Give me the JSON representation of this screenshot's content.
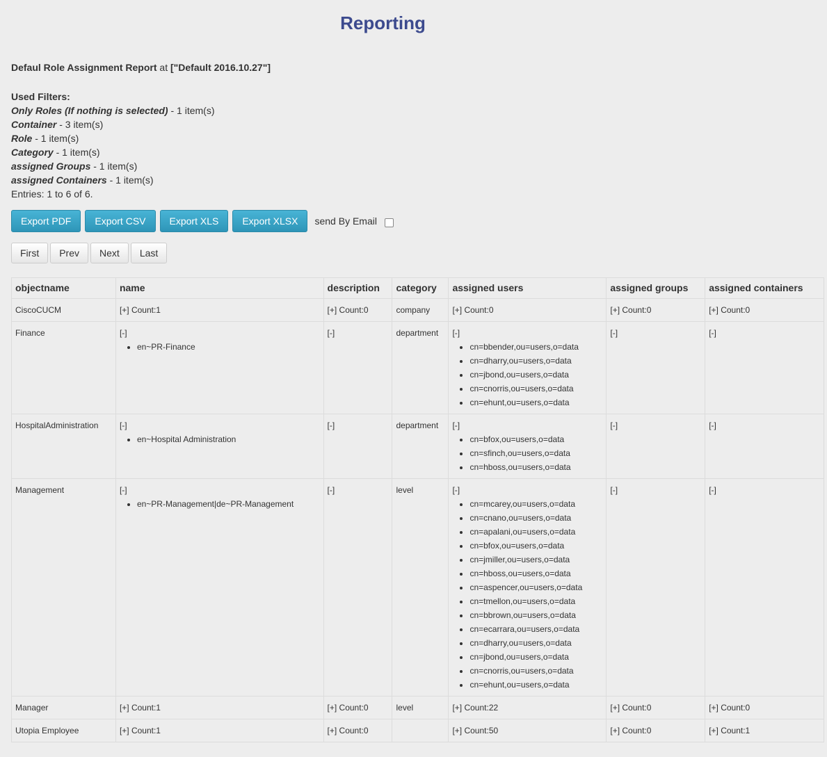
{
  "header": {
    "title": "Reporting"
  },
  "report": {
    "name": "Defaul Role Assignment Report",
    "at_word": "at",
    "context": "[\"Default 2016.10.27\"]"
  },
  "filters": {
    "heading": "Used Filters:",
    "items": [
      {
        "name": "Only Roles (If nothing is selected)",
        "count": " - 1 item(s)"
      },
      {
        "name": "Container",
        "count": " - 3 item(s)"
      },
      {
        "name": "Role",
        "count": " - 1 item(s)"
      },
      {
        "name": "Category",
        "count": " - 1 item(s)"
      },
      {
        "name": "assigned Groups",
        "count": " - 1 item(s)"
      },
      {
        "name": "assigned Containers",
        "count": " - 1 item(s)"
      }
    ],
    "entries": "Entries: 1 to 6 of 6."
  },
  "toolbar": {
    "export_pdf": "Export PDF",
    "export_csv": "Export CSV",
    "export_xls": "Export XLS",
    "export_xlsx": "Export XLSX",
    "send_email": "send By Email"
  },
  "pager": {
    "first": "First",
    "prev": "Prev",
    "next": "Next",
    "last": "Last"
  },
  "table": {
    "columns": [
      "objectname",
      "name",
      "description",
      "category",
      "assigned users",
      "assigned groups",
      "assigned containers"
    ],
    "rows": [
      {
        "objectname": "CiscoCUCM",
        "name": "[+] Count:1",
        "name_items": [],
        "description": "[+] Count:0",
        "category": "company",
        "users": "[+] Count:0",
        "user_items": [],
        "groups": "[+] Count:0",
        "containers": "[+] Count:0"
      },
      {
        "objectname": "Finance",
        "name": "[-]",
        "name_items": [
          "en~PR-Finance"
        ],
        "description": "[-]",
        "category": "department",
        "users": "[-]",
        "user_items": [
          "cn=bbender,ou=users,o=data",
          "cn=dharry,ou=users,o=data",
          "cn=jbond,ou=users,o=data",
          "cn=cnorris,ou=users,o=data",
          "cn=ehunt,ou=users,o=data"
        ],
        "groups": "[-]",
        "containers": "[-]"
      },
      {
        "objectname": "HospitalAdministration",
        "name": "[-]",
        "name_items": [
          "en~Hospital Administration"
        ],
        "description": "[-]",
        "category": "department",
        "users": "[-]",
        "user_items": [
          "cn=bfox,ou=users,o=data",
          "cn=sfinch,ou=users,o=data",
          "cn=hboss,ou=users,o=data"
        ],
        "groups": "[-]",
        "containers": "[-]"
      },
      {
        "objectname": "Management",
        "name": "[-]",
        "name_items": [
          "en~PR-Management|de~PR-Management"
        ],
        "description": "[-]",
        "category": "level",
        "users": "[-]",
        "user_items": [
          "cn=mcarey,ou=users,o=data",
          "cn=cnano,ou=users,o=data",
          "cn=apalani,ou=users,o=data",
          "cn=bfox,ou=users,o=data",
          "cn=jmiller,ou=users,o=data",
          "cn=hboss,ou=users,o=data",
          "cn=aspencer,ou=users,o=data",
          "cn=tmellon,ou=users,o=data",
          "cn=bbrown,ou=users,o=data",
          "cn=ecarrara,ou=users,o=data",
          "cn=dharry,ou=users,o=data",
          "cn=jbond,ou=users,o=data",
          "cn=cnorris,ou=users,o=data",
          "cn=ehunt,ou=users,o=data"
        ],
        "groups": "[-]",
        "containers": "[-]"
      },
      {
        "objectname": "Manager",
        "name": "[+] Count:1",
        "name_items": [],
        "description": "[+] Count:0",
        "category": "level",
        "users": "[+] Count:22",
        "user_items": [],
        "groups": "[+] Count:0",
        "containers": "[+] Count:0"
      },
      {
        "objectname": "Utopia Employee",
        "name": "[+] Count:1",
        "name_items": [],
        "description": "[+] Count:0",
        "category": "",
        "users": "[+] Count:50",
        "user_items": [],
        "groups": "[+] Count:0",
        "containers": "[+] Count:1"
      }
    ]
  }
}
